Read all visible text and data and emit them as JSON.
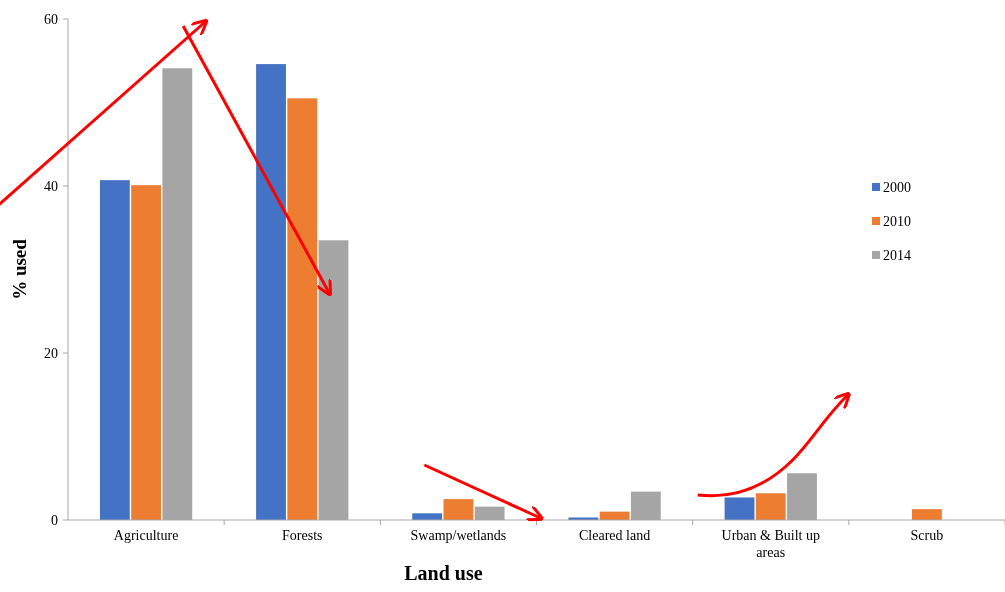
{
  "chart_data": {
    "type": "bar",
    "xlabel": "Land use",
    "ylabel": "% used",
    "categories": [
      "Agriculture",
      "Forests",
      "Swamp/wetlands",
      "Cleared land",
      "Urban & Built up areas",
      "Scrub"
    ],
    "series": [
      {
        "name": "2000",
        "color": "#4472c4",
        "values": [
          40.7,
          54.6,
          0.8,
          0.3,
          2.7,
          null
        ]
      },
      {
        "name": "2010",
        "color": "#ed7d31",
        "values": [
          40.1,
          50.5,
          2.5,
          1.0,
          3.2,
          1.3
        ]
      },
      {
        "name": "2014",
        "color": "#a5a5a5",
        "values": [
          54.1,
          33.5,
          1.6,
          3.4,
          5.6,
          null
        ]
      }
    ],
    "ylim": [
      0,
      60
    ],
    "yticks": [
      0,
      20,
      40,
      60
    ],
    "grid": false,
    "legend": "right"
  }
}
